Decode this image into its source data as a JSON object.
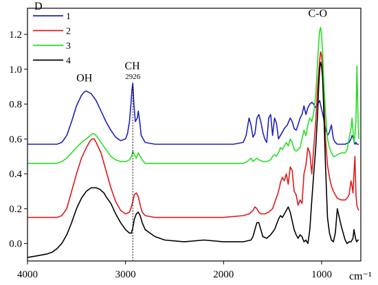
{
  "chart_data": {
    "type": "line",
    "xlabel": "cm⁻¹",
    "ylabel": "D",
    "xlim": [
      4000,
      600
    ],
    "ylim": [
      -0.1,
      1.35
    ],
    "x_ticks": [
      4000,
      3000,
      2000,
      1000
    ],
    "y_ticks": [
      0.0,
      0.2,
      0.4,
      0.6,
      0.8,
      1.0,
      1.2
    ],
    "x_tick_labels": [
      "4000",
      "3000",
      "2000",
      "1000"
    ],
    "y_tick_labels": [
      "0.0",
      "0.2",
      "0.4",
      "0.6",
      "0.8",
      "1.0",
      "1.2"
    ],
    "legend_position": "top-left",
    "reference_line": {
      "x": 2926,
      "style": "dotted"
    },
    "annotations": [
      {
        "text": "OH",
        "x": 3420,
        "y": 0.93
      },
      {
        "text": "CH",
        "x": 2930,
        "y": 1.0
      },
      {
        "text": "2926",
        "x": 2926,
        "y": 0.945
      },
      {
        "text": "C-O",
        "x": 1040,
        "y": 1.3
      }
    ],
    "series": [
      {
        "name": "1",
        "color": "#1f1fbf",
        "x": [
          4000,
          3800,
          3700,
          3650,
          3600,
          3550,
          3500,
          3450,
          3420,
          3400,
          3350,
          3300,
          3250,
          3200,
          3150,
          3100,
          3050,
          3000,
          2980,
          2960,
          2945,
          2935,
          2926,
          2915,
          2900,
          2880,
          2870,
          2855,
          2840,
          2800,
          2700,
          2600,
          2400,
          2200,
          2000,
          1900,
          1800,
          1770,
          1740,
          1720,
          1700,
          1680,
          1660,
          1640,
          1620,
          1600,
          1580,
          1560,
          1540,
          1520,
          1500,
          1480,
          1460,
          1440,
          1420,
          1400,
          1380,
          1350,
          1320,
          1300,
          1280,
          1260,
          1240,
          1220,
          1200,
          1180,
          1160,
          1140,
          1120,
          1100,
          1080,
          1060,
          1040,
          1020,
          1000,
          980,
          960,
          940,
          920,
          900,
          880,
          860,
          840,
          800,
          760,
          720,
          700,
          690,
          680,
          670,
          660,
          650,
          640,
          630,
          620
        ],
        "y": [
          0.57,
          0.57,
          0.57,
          0.58,
          0.62,
          0.7,
          0.79,
          0.85,
          0.87,
          0.875,
          0.86,
          0.82,
          0.76,
          0.7,
          0.65,
          0.61,
          0.59,
          0.6,
          0.63,
          0.7,
          0.8,
          0.88,
          0.92,
          0.8,
          0.7,
          0.72,
          0.76,
          0.7,
          0.62,
          0.58,
          0.57,
          0.57,
          0.57,
          0.57,
          0.57,
          0.57,
          0.58,
          0.62,
          0.72,
          0.68,
          0.61,
          0.63,
          0.72,
          0.74,
          0.7,
          0.64,
          0.6,
          0.58,
          0.72,
          0.74,
          0.62,
          0.72,
          0.69,
          0.6,
          0.62,
          0.64,
          0.66,
          0.68,
          0.72,
          0.7,
          0.66,
          0.65,
          0.68,
          0.72,
          0.74,
          0.79,
          0.74,
          0.78,
          0.8,
          0.81,
          0.8,
          0.78,
          0.8,
          0.82,
          0.77,
          0.72,
          0.66,
          0.62,
          0.64,
          0.68,
          0.6,
          0.58,
          0.57,
          0.57,
          0.57,
          0.58,
          0.6,
          0.62,
          0.61,
          0.59,
          0.57,
          0.58,
          0.57,
          0.57,
          0.57
        ]
      },
      {
        "name": "2",
        "color": "#e01818",
        "x": [
          4000,
          3800,
          3700,
          3650,
          3600,
          3550,
          3500,
          3450,
          3400,
          3360,
          3340,
          3320,
          3300,
          3250,
          3200,
          3150,
          3100,
          3050,
          3000,
          2960,
          2940,
          2926,
          2910,
          2890,
          2870,
          2850,
          2830,
          2800,
          2700,
          2500,
          2200,
          2000,
          1800,
          1740,
          1700,
          1680,
          1660,
          1640,
          1620,
          1580,
          1540,
          1500,
          1470,
          1450,
          1430,
          1420,
          1400,
          1380,
          1360,
          1340,
          1320,
          1300,
          1280,
          1260,
          1240,
          1220,
          1200,
          1180,
          1160,
          1140,
          1120,
          1100,
          1080,
          1060,
          1040,
          1030,
          1020,
          1010,
          1000,
          990,
          980,
          960,
          940,
          920,
          900,
          880,
          860,
          840,
          800,
          760,
          740,
          720,
          700,
          690,
          680,
          670,
          660,
          650,
          640,
          630,
          620
        ],
        "y": [
          0.15,
          0.15,
          0.15,
          0.16,
          0.2,
          0.3,
          0.4,
          0.49,
          0.55,
          0.59,
          0.6,
          0.6,
          0.58,
          0.52,
          0.42,
          0.32,
          0.24,
          0.19,
          0.17,
          0.18,
          0.21,
          0.24,
          0.28,
          0.29,
          0.27,
          0.22,
          0.18,
          0.16,
          0.15,
          0.15,
          0.15,
          0.15,
          0.16,
          0.17,
          0.19,
          0.21,
          0.2,
          0.18,
          0.17,
          0.17,
          0.18,
          0.2,
          0.25,
          0.28,
          0.32,
          0.35,
          0.38,
          0.36,
          0.4,
          0.34,
          0.44,
          0.42,
          0.3,
          0.28,
          0.22,
          0.25,
          0.23,
          0.4,
          0.45,
          0.55,
          0.52,
          0.4,
          0.55,
          0.7,
          0.9,
          0.98,
          1.05,
          1.1,
          1.08,
          1.0,
          0.85,
          0.6,
          0.45,
          0.38,
          0.33,
          0.3,
          0.28,
          0.26,
          0.25,
          0.25,
          0.26,
          0.28,
          0.36,
          0.33,
          0.29,
          0.4,
          0.5,
          0.28,
          0.22,
          0.2,
          0.19
        ]
      },
      {
        "name": "3",
        "color": "#22e022",
        "x": [
          4000,
          3800,
          3700,
          3650,
          3600,
          3550,
          3500,
          3450,
          3400,
          3360,
          3340,
          3320,
          3300,
          3250,
          3200,
          3150,
          3100,
          3050,
          3000,
          2960,
          2940,
          2926,
          2910,
          2890,
          2870,
          2850,
          2830,
          2800,
          2700,
          2500,
          2200,
          2000,
          1800,
          1760,
          1740,
          1720,
          1700,
          1680,
          1660,
          1640,
          1600,
          1560,
          1520,
          1500,
          1480,
          1460,
          1440,
          1420,
          1400,
          1380,
          1360,
          1340,
          1320,
          1300,
          1280,
          1260,
          1240,
          1220,
          1200,
          1180,
          1160,
          1140,
          1120,
          1100,
          1080,
          1060,
          1040,
          1030,
          1020,
          1010,
          1000,
          990,
          980,
          960,
          940,
          920,
          900,
          880,
          860,
          840,
          800,
          760,
          740,
          720,
          700,
          690,
          680,
          670,
          660,
          650,
          640,
          630,
          620
        ],
        "y": [
          0.46,
          0.46,
          0.46,
          0.47,
          0.49,
          0.52,
          0.55,
          0.58,
          0.6,
          0.62,
          0.63,
          0.63,
          0.62,
          0.58,
          0.54,
          0.5,
          0.48,
          0.47,
          0.47,
          0.48,
          0.5,
          0.53,
          0.51,
          0.49,
          0.52,
          0.5,
          0.48,
          0.46,
          0.46,
          0.46,
          0.46,
          0.46,
          0.46,
          0.47,
          0.48,
          0.49,
          0.47,
          0.48,
          0.49,
          0.48,
          0.47,
          0.47,
          0.48,
          0.5,
          0.51,
          0.5,
          0.52,
          0.55,
          0.54,
          0.56,
          0.58,
          0.56,
          0.6,
          0.58,
          0.54,
          0.53,
          0.54,
          0.55,
          0.6,
          0.65,
          0.62,
          0.68,
          0.72,
          0.7,
          0.75,
          0.85,
          1.05,
          1.15,
          1.22,
          1.24,
          1.2,
          1.1,
          0.95,
          0.75,
          0.6,
          0.55,
          0.52,
          0.5,
          0.5,
          0.51,
          0.52,
          0.52,
          0.54,
          0.6,
          0.66,
          0.72,
          0.65,
          0.58,
          0.62,
          0.7,
          1.02,
          0.75,
          0.6
        ]
      },
      {
        "name": "4",
        "color": "#000000",
        "x": [
          4000,
          3900,
          3800,
          3750,
          3700,
          3650,
          3600,
          3550,
          3500,
          3450,
          3400,
          3350,
          3300,
          3260,
          3240,
          3220,
          3200,
          3150,
          3100,
          3050,
          3000,
          2960,
          2940,
          2926,
          2910,
          2890,
          2870,
          2850,
          2830,
          2800,
          2700,
          2600,
          2400,
          2200,
          2000,
          1800,
          1720,
          1700,
          1680,
          1660,
          1640,
          1620,
          1600,
          1560,
          1520,
          1480,
          1440,
          1420,
          1400,
          1380,
          1360,
          1340,
          1320,
          1300,
          1280,
          1260,
          1240,
          1220,
          1200,
          1180,
          1160,
          1140,
          1120,
          1100,
          1080,
          1060,
          1040,
          1030,
          1020,
          1010,
          1000,
          990,
          980,
          960,
          940,
          920,
          900,
          880,
          860,
          840,
          800,
          760,
          740,
          720,
          700,
          690,
          680,
          670,
          660,
          650,
          640,
          630,
          620
        ],
        "y": [
          -0.08,
          -0.07,
          -0.06,
          -0.05,
          -0.03,
          0.0,
          0.05,
          0.12,
          0.2,
          0.26,
          0.3,
          0.32,
          0.32,
          0.31,
          0.3,
          0.29,
          0.27,
          0.23,
          0.17,
          0.12,
          0.08,
          0.06,
          0.06,
          0.09,
          0.14,
          0.17,
          0.18,
          0.16,
          0.12,
          0.08,
          0.04,
          0.02,
          0.01,
          0.02,
          0.01,
          0.01,
          0.02,
          0.04,
          0.08,
          0.12,
          0.12,
          0.08,
          0.04,
          0.03,
          0.05,
          0.08,
          0.14,
          0.16,
          0.15,
          0.17,
          0.19,
          0.21,
          0.18,
          0.13,
          0.08,
          0.05,
          0.03,
          0.05,
          0.04,
          0.01,
          0.02,
          0.0,
          0.08,
          0.25,
          0.4,
          0.55,
          0.75,
          0.9,
          1.0,
          1.04,
          1.02,
          0.95,
          0.8,
          0.45,
          0.15,
          0.06,
          0.02,
          0.01,
          0.06,
          0.2,
          0.1,
          0.02,
          0.0,
          0.01,
          0.01,
          0.02,
          0.03,
          0.08,
          0.05,
          0.02,
          0.01,
          0.02,
          0.02
        ]
      }
    ]
  }
}
